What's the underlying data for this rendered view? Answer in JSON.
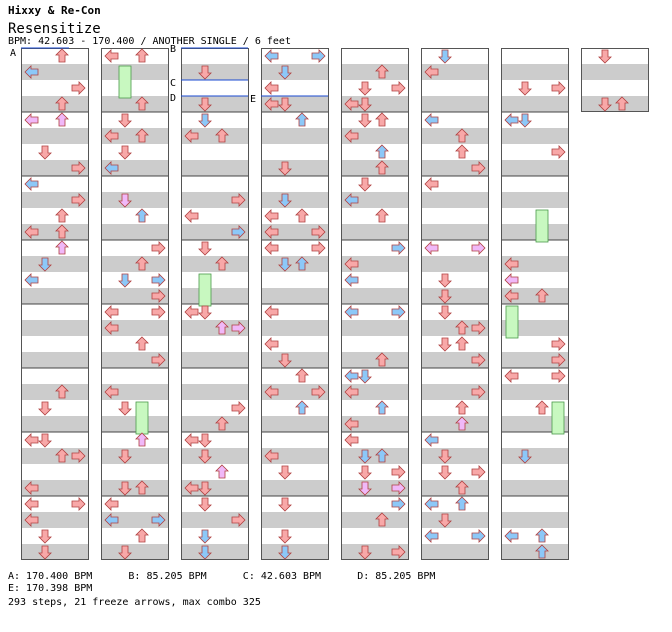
{
  "header": {
    "artist": "Hixxy & Re-Con",
    "title": "Resensitize",
    "info": "BPM: 42.603 - 170.400 / ANOTHER SINGLE / 6 feet"
  },
  "footer": {
    "bpm_line_1": "A: 170.400 BPM      B: 85.205 BPM      C: 42.603 BPM      D: 85.205 BPM",
    "bpm_line_2": "E: 170.398 BPM",
    "stats": "293 steps, 21 freeze arrows, max combo 325"
  },
  "markers": [
    "A",
    "B",
    "C",
    "D",
    "E"
  ],
  "colors": {
    "quarter": "#f8a8a8",
    "eighth": "#8cc8f8",
    "sixteenth": "#f0b8f8",
    "freeze": "#c8f8c0",
    "stripe": "#cccccc"
  }
}
